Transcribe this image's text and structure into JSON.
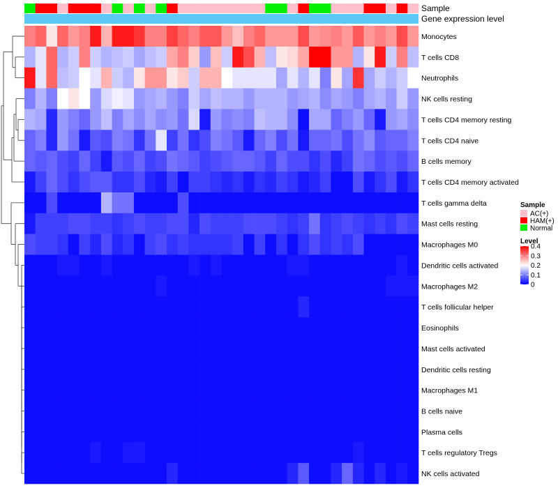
{
  "chart_data": {
    "type": "heatmap",
    "annotation_labels": {
      "sample": "Sample",
      "gene": "Gene expression level"
    },
    "sample_groups": [
      "AC(+)",
      "HAM(+)",
      "Normal"
    ],
    "sample_colors": {
      "AC(+)": "#ffc0cb",
      "HAM(+)": "#ff0000",
      "Normal": "#00ee00"
    },
    "gene_expression_color": "#5bc8f5",
    "column_samples": [
      "Normal",
      "HAM(+)",
      "HAM(+)",
      "AC(+)",
      "HAM(+)",
      "HAM(+)",
      "HAM(+)",
      "AC(+)",
      "Normal",
      "AC(+)",
      "Normal",
      "AC(+)",
      "Normal",
      "HAM(+)",
      "AC(+)",
      "AC(+)",
      "AC(+)",
      "AC(+)",
      "AC(+)",
      "AC(+)",
      "AC(+)",
      "AC(+)",
      "Normal",
      "Normal",
      "AC(+)",
      "HAM(+)",
      "Normal",
      "Normal",
      "AC(+)",
      "AC(+)",
      "AC(+)",
      "HAM(+)",
      "HAM(+)",
      "AC(+)",
      "HAM(+)",
      "AC(+)"
    ],
    "rows": [
      "Monocytes",
      "T cells CD8",
      "Neutrophils",
      "NK cells resting",
      "T cells CD4 memory resting",
      "T cells CD4 naive",
      "B cells memory",
      "T cells CD4 memory activated",
      "T cells gamma delta",
      "Mast cells resting",
      "Macrophages M0",
      "Dendritic cells activated",
      "Macrophages M2",
      "T cells follicular helper",
      "Eosinophils",
      "Mast cells activated",
      "Dendritic cells resting",
      "Macrophages M1",
      "B cells naive",
      "Plasma cells",
      "T cells regulatory  Tregs",
      "NK cells activated"
    ],
    "values": [
      [
        0.3,
        0.32,
        0.22,
        0.32,
        0.28,
        0.3,
        0.38,
        0.26,
        0.38,
        0.38,
        0.36,
        0.3,
        0.3,
        0.35,
        0.32,
        0.3,
        0.33,
        0.33,
        0.28,
        0.25,
        0.3,
        0.32,
        0.28,
        0.28,
        0.28,
        0.34,
        0.28,
        0.29,
        0.3,
        0.28,
        0.33,
        0.28,
        0.3,
        0.28,
        0.34,
        0.28
      ],
      [
        0.14,
        0.18,
        0.32,
        0.14,
        0.16,
        0.3,
        0.16,
        0.14,
        0.15,
        0.16,
        0.13,
        0.15,
        0.16,
        0.27,
        0.3,
        0.24,
        0.12,
        0.25,
        0.16,
        0.38,
        0.34,
        0.26,
        0.15,
        0.22,
        0.23,
        0.27,
        0.4,
        0.4,
        0.28,
        0.28,
        0.14,
        0.22,
        0.38,
        0.16,
        0.3,
        0.15
      ],
      [
        0.38,
        0.18,
        0.32,
        0.15,
        0.16,
        0.2,
        0.18,
        0.26,
        0.16,
        0.14,
        0.22,
        0.28,
        0.28,
        0.22,
        0.24,
        0.16,
        0.26,
        0.26,
        0.2,
        0.18,
        0.18,
        0.18,
        0.18,
        0.13,
        0.18,
        0.14,
        0.18,
        0.1,
        0.22,
        0.13,
        0.36,
        0.13,
        0.16,
        0.14,
        0.16,
        0.2
      ],
      [
        0.1,
        0.14,
        0.1,
        0.2,
        0.22,
        0.2,
        0.12,
        0.17,
        0.19,
        0.18,
        0.12,
        0.13,
        0.14,
        0.12,
        0.1,
        0.16,
        0.13,
        0.15,
        0.14,
        0.14,
        0.12,
        0.14,
        0.14,
        0.14,
        0.12,
        0.13,
        0.14,
        0.11,
        0.13,
        0.12,
        0.1,
        0.13,
        0.14,
        0.12,
        0.16,
        0.12
      ],
      [
        0.14,
        0.13,
        0.03,
        0.12,
        0.1,
        0.08,
        0.12,
        0.15,
        0.1,
        0.13,
        0.11,
        0.13,
        0.11,
        0.12,
        0.09,
        0.17,
        0.02,
        0.12,
        0.1,
        0.11,
        0.1,
        0.15,
        0.14,
        0.14,
        0.11,
        0.01,
        0.13,
        0.13,
        0.08,
        0.1,
        0.12,
        0.08,
        0.02,
        0.12,
        0.13,
        0.11
      ],
      [
        0.08,
        0.1,
        0.03,
        0.12,
        0.09,
        0.02,
        0.07,
        0.06,
        0.1,
        0.09,
        0.04,
        0.09,
        0.18,
        0.05,
        0.09,
        0.04,
        0.06,
        0.1,
        0.09,
        0.07,
        0.02,
        0.08,
        0.1,
        0.06,
        0.09,
        0.02,
        0.08,
        0.08,
        0.09,
        0.06,
        0.09,
        0.11,
        0.07,
        0.08,
        0.08,
        0.1
      ],
      [
        0.08,
        0.07,
        0.08,
        0.06,
        0.05,
        0.08,
        0.05,
        0.02,
        0.07,
        0.06,
        0.08,
        0.05,
        0.06,
        0.09,
        0.08,
        0.07,
        0.05,
        0.06,
        0.07,
        0.08,
        0.08,
        0.07,
        0.05,
        0.08,
        0.06,
        0.06,
        0.04,
        0.06,
        0.03,
        0.05,
        0.09,
        0.08,
        0.06,
        0.07,
        0.06,
        0.08
      ],
      [
        0.02,
        0.05,
        0.08,
        0.06,
        0.04,
        0.06,
        0.07,
        0.07,
        0.04,
        0.04,
        0.06,
        0.03,
        0.02,
        0.05,
        0.01,
        0.05,
        0.05,
        0.04,
        0.03,
        0.04,
        0.02,
        0.04,
        0.03,
        0.05,
        0.04,
        0.02,
        0.03,
        0.05,
        0.01,
        0.01,
        0.06,
        0.02,
        0.04,
        0.06,
        0.02,
        0.04
      ],
      [
        0.01,
        0.01,
        0.06,
        0.01,
        0.01,
        0.01,
        0.01,
        0.14,
        0.09,
        0.09,
        0.01,
        0.01,
        0.01,
        0.01,
        0.06,
        0.01,
        0.01,
        0.01,
        0.01,
        0.01,
        0.01,
        0.01,
        0.01,
        0.01,
        0.01,
        0.01,
        0.01,
        0.01,
        0.01,
        0.01,
        0.01,
        0.01,
        0.01,
        0.01,
        0.01,
        0.01
      ],
      [
        0.02,
        0.05,
        0.05,
        0.05,
        0.06,
        0.06,
        0.05,
        0.05,
        0.04,
        0.05,
        0.06,
        0.05,
        0.05,
        0.06,
        0.06,
        0.03,
        0.06,
        0.05,
        0.05,
        0.05,
        0.06,
        0.06,
        0.06,
        0.05,
        0.04,
        0.05,
        0.09,
        0.04,
        0.05,
        0.06,
        0.05,
        0.04,
        0.05,
        0.04,
        0.06,
        0.05
      ],
      [
        0.06,
        0.05,
        0.05,
        0.04,
        0.01,
        0.05,
        0.03,
        0.06,
        0.03,
        0.04,
        0.01,
        0.05,
        0.06,
        0.04,
        0.05,
        0.04,
        0.04,
        0.04,
        0.04,
        0.05,
        0.01,
        0.05,
        0.01,
        0.04,
        0.01,
        0.04,
        0.06,
        0.04,
        0.05,
        0.04,
        0.06,
        0.01,
        0.01,
        0.01,
        0.01,
        0.01
      ],
      [
        0.01,
        0.01,
        0.01,
        0.02,
        0.02,
        0.01,
        0.01,
        0.02,
        0.01,
        0.01,
        0.01,
        0.01,
        0.01,
        0.01,
        0.01,
        0.02,
        0.01,
        0.02,
        0.01,
        0.01,
        0.01,
        0.01,
        0.01,
        0.01,
        0.02,
        0.02,
        0.01,
        0.01,
        0.01,
        0.01,
        0.01,
        0.01,
        0.01,
        0.01,
        0.02,
        0.01
      ],
      [
        0.01,
        0.01,
        0.01,
        0.01,
        0.01,
        0.01,
        0.01,
        0.01,
        0.01,
        0.01,
        0.01,
        0.01,
        0.02,
        0.01,
        0.01,
        0.01,
        0.01,
        0.01,
        0.01,
        0.01,
        0.01,
        0.01,
        0.01,
        0.01,
        0.01,
        0.01,
        0.01,
        0.01,
        0.01,
        0.01,
        0.01,
        0.01,
        0.01,
        0.02,
        0.02,
        0.02
      ],
      [
        0.01,
        0.01,
        0.01,
        0.01,
        0.01,
        0.01,
        0.01,
        0.01,
        0.01,
        0.01,
        0.01,
        0.01,
        0.01,
        0.01,
        0.01,
        0.01,
        0.01,
        0.01,
        0.01,
        0.01,
        0.01,
        0.01,
        0.01,
        0.01,
        0.01,
        0.03,
        0.01,
        0.01,
        0.01,
        0.01,
        0.01,
        0.01,
        0.01,
        0.01,
        0.01,
        0.01
      ],
      [
        0.01,
        0.01,
        0.01,
        0.01,
        0.01,
        0.01,
        0.01,
        0.01,
        0.01,
        0.01,
        0.01,
        0.01,
        0.01,
        0.01,
        0.01,
        0.01,
        0.01,
        0.01,
        0.01,
        0.01,
        0.01,
        0.01,
        0.01,
        0.01,
        0.01,
        0.01,
        0.01,
        0.01,
        0.01,
        0.01,
        0.01,
        0.01,
        0.01,
        0.01,
        0.01,
        0.01
      ],
      [
        0.01,
        0.01,
        0.01,
        0.01,
        0.01,
        0.01,
        0.01,
        0.01,
        0.01,
        0.01,
        0.01,
        0.01,
        0.01,
        0.01,
        0.01,
        0.01,
        0.01,
        0.01,
        0.01,
        0.01,
        0.01,
        0.01,
        0.01,
        0.01,
        0.01,
        0.01,
        0.01,
        0.01,
        0.01,
        0.01,
        0.01,
        0.01,
        0.01,
        0.01,
        0.01,
        0.01
      ],
      [
        0.01,
        0.01,
        0.01,
        0.01,
        0.01,
        0.01,
        0.01,
        0.01,
        0.01,
        0.01,
        0.01,
        0.01,
        0.01,
        0.01,
        0.01,
        0.01,
        0.01,
        0.01,
        0.01,
        0.01,
        0.01,
        0.01,
        0.01,
        0.01,
        0.01,
        0.01,
        0.01,
        0.01,
        0.01,
        0.01,
        0.01,
        0.01,
        0.01,
        0.01,
        0.01,
        0.01
      ],
      [
        0.01,
        0.01,
        0.01,
        0.01,
        0.01,
        0.01,
        0.01,
        0.01,
        0.01,
        0.01,
        0.01,
        0.01,
        0.01,
        0.01,
        0.01,
        0.01,
        0.01,
        0.01,
        0.01,
        0.01,
        0.01,
        0.01,
        0.01,
        0.01,
        0.01,
        0.01,
        0.01,
        0.01,
        0.01,
        0.01,
        0.01,
        0.01,
        0.01,
        0.01,
        0.01,
        0.01
      ],
      [
        0.01,
        0.01,
        0.01,
        0.01,
        0.01,
        0.01,
        0.01,
        0.01,
        0.01,
        0.01,
        0.01,
        0.01,
        0.01,
        0.01,
        0.01,
        0.01,
        0.01,
        0.01,
        0.01,
        0.01,
        0.01,
        0.01,
        0.01,
        0.01,
        0.01,
        0.01,
        0.01,
        0.01,
        0.01,
        0.01,
        0.01,
        0.01,
        0.01,
        0.01,
        0.01,
        0.01
      ],
      [
        0.01,
        0.01,
        0.01,
        0.01,
        0.01,
        0.01,
        0.01,
        0.01,
        0.01,
        0.01,
        0.01,
        0.01,
        0.01,
        0.01,
        0.01,
        0.01,
        0.01,
        0.01,
        0.01,
        0.01,
        0.01,
        0.01,
        0.01,
        0.01,
        0.01,
        0.01,
        0.01,
        0.01,
        0.01,
        0.01,
        0.01,
        0.01,
        0.01,
        0.01,
        0.01,
        0.01
      ],
      [
        0.01,
        0.01,
        0.01,
        0.01,
        0.01,
        0.01,
        0.02,
        0.01,
        0.01,
        0.02,
        0.02,
        0.01,
        0.01,
        0.01,
        0.01,
        0.01,
        0.01,
        0.01,
        0.01,
        0.01,
        0.01,
        0.01,
        0.01,
        0.01,
        0.01,
        0.01,
        0.01,
        0.01,
        0.01,
        0.01,
        0.02,
        0.01,
        0.01,
        0.01,
        0.01,
        0.01
      ],
      [
        0.01,
        0.01,
        0.01,
        0.01,
        0.01,
        0.01,
        0.01,
        0.01,
        0.01,
        0.01,
        0.01,
        0.01,
        0.01,
        0.03,
        0.01,
        0.01,
        0.01,
        0.01,
        0.01,
        0.01,
        0.01,
        0.01,
        0.01,
        0.01,
        0.03,
        0.07,
        0.01,
        0.01,
        0.03,
        0.08,
        0.03,
        0.01,
        0.03,
        0.01,
        0.02,
        0.01
      ]
    ],
    "legend": {
      "sample_title": "Sample",
      "level_title": "Level",
      "level_ticks": [
        "0.4",
        "0.3",
        "0.2",
        "0.1",
        "0"
      ],
      "level_range": [
        0,
        0.4
      ]
    },
    "color_scale": {
      "low": "#0000ff",
      "mid": "#ffffff",
      "high": "#ff0000",
      "mid_value": 0.2
    }
  }
}
